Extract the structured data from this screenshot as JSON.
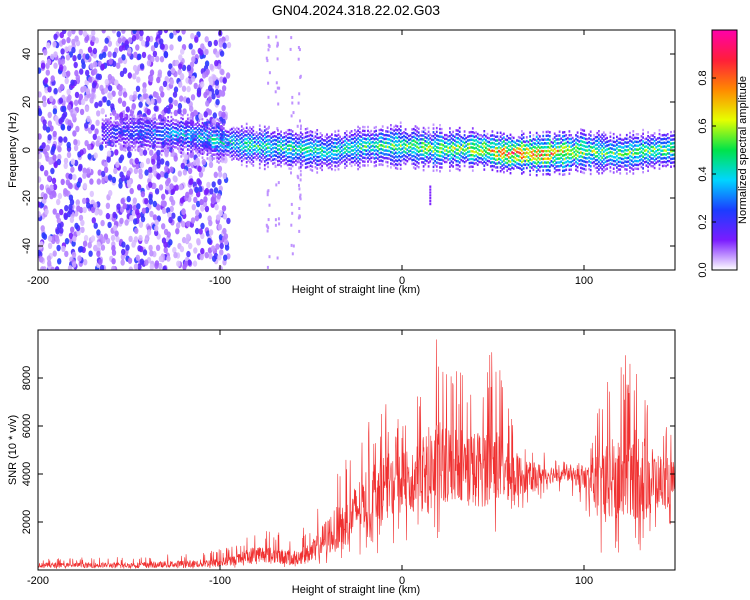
{
  "title": "GN04.2024.318.22.02.G03",
  "chart_data": [
    {
      "type": "heatmap",
      "title": "GN04.2024.318.22.02.G03",
      "xlabel": "Height of straight line (km)",
      "ylabel": "Frequency (Hz)",
      "xlim": [
        -200,
        150
      ],
      "ylim": [
        -50,
        50
      ],
      "x_ticks": [
        -200,
        -100,
        0,
        100
      ],
      "y_ticks": [
        -40,
        -20,
        0,
        20,
        40
      ],
      "colorbar": {
        "label": "Normalized spectral amplitude",
        "range": [
          0,
          1
        ],
        "ticks": [
          "0.0",
          "0.2",
          "0.4",
          "0.6",
          "0.8"
        ],
        "colors": [
          "#ffffff",
          "#7a1cff",
          "#1b3dff",
          "#00d6ff",
          "#00e34a",
          "#e6ff00",
          "#ff8a00",
          "#ff1e3a",
          "#ff00aa"
        ]
      },
      "band": {
        "x": [
          -200,
          -150,
          -120,
          -100,
          -80,
          -60,
          -40,
          -20,
          0,
          20,
          40,
          60,
          80,
          100,
          120,
          150
        ],
        "center_freq": [
          8,
          8,
          7,
          4,
          2,
          1,
          0,
          2,
          2,
          1,
          1,
          -1,
          -1,
          0,
          -1,
          1
        ],
        "peak_amplitude": [
          0.2,
          0.25,
          0.4,
          0.45,
          0.5,
          0.5,
          0.45,
          0.5,
          0.55,
          0.6,
          0.65,
          0.85,
          0.85,
          0.6,
          0.55,
          0.6
        ]
      },
      "notes": "noise scatter spans x=-200 to -95 across all frequencies"
    },
    {
      "type": "line",
      "xlabel": "Height of straight line (km)",
      "ylabel": "SNR (10 * v/v)",
      "xlim": [
        -200,
        150
      ],
      "ylim": [
        0,
        10000
      ],
      "x_ticks": [
        -200,
        -100,
        0,
        100
      ],
      "y_ticks": [
        2000,
        4000,
        6000,
        8000
      ],
      "color": "#f03030",
      "series": [
        {
          "x": [
            -200,
            -150,
            -120,
            -100,
            -90,
            -80,
            -70,
            -60,
            -50,
            -40,
            -30,
            -20,
            -10,
            0,
            10,
            20,
            30,
            40,
            50,
            60,
            70,
            80,
            90,
            100,
            110,
            120,
            130,
            140,
            150
          ],
          "y": [
            200,
            200,
            250,
            300,
            450,
            700,
            600,
            500,
            700,
            1500,
            2000,
            3000,
            3500,
            3600,
            4000,
            4300,
            4500,
            4200,
            4400,
            4000,
            3900,
            4000,
            4000,
            3800,
            3600,
            3800,
            4000,
            3800,
            3600
          ],
          "y_max": [
            500,
            550,
            700,
            900,
            1100,
            1800,
            1600,
            1500,
            2000,
            4000,
            4800,
            6000,
            7000,
            6500,
            8800,
            9800,
            8500,
            8000,
            9500,
            6500,
            5500,
            4800,
            4500,
            4500,
            7500,
            9000,
            9000,
            6500,
            5500
          ],
          "y_min": [
            50,
            50,
            50,
            60,
            100,
            200,
            150,
            100,
            150,
            200,
            300,
            500,
            800,
            1200,
            1000,
            1200,
            1500,
            1000,
            1500,
            1800,
            2800,
            3000,
            3300,
            2500,
            500,
            300,
            600,
            1500,
            1500
          ]
        }
      ]
    }
  ]
}
